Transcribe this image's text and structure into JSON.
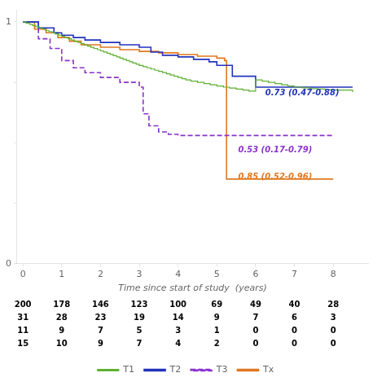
{
  "chart_data": {
    "type": "step",
    "xlabel": "Time since start of study  (years)",
    "xlim": [
      -0.15,
      8.9
    ],
    "xticks": [
      0,
      1,
      2,
      3,
      4,
      5,
      6,
      7,
      8
    ],
    "ylim": [
      0,
      1.05
    ],
    "yticks": [
      0,
      {
        "value": 0.25,
        "label": ""
      },
      {
        "value": 0.5,
        "label": ""
      },
      {
        "value": 0.75,
        "label": ""
      },
      1
    ],
    "grid": false,
    "legend": "bottom",
    "series": [
      {
        "name": "T1",
        "color": "#5db030",
        "line_style": "solid",
        "x": [
          0,
          0.08,
          0.17,
          0.25,
          0.33,
          0.42,
          0.5,
          0.58,
          0.67,
          0.75,
          0.83,
          0.92,
          1.0,
          1.08,
          1.17,
          1.25,
          1.33,
          1.42,
          1.5,
          1.58,
          1.67,
          1.75,
          1.83,
          1.92,
          2.0,
          2.08,
          2.17,
          2.25,
          2.33,
          2.42,
          2.5,
          2.58,
          2.67,
          2.75,
          2.83,
          2.92,
          3.0,
          3.1,
          3.2,
          3.3,
          3.4,
          3.5,
          3.6,
          3.7,
          3.8,
          3.9,
          4.0,
          4.1,
          4.2,
          4.33,
          4.5,
          4.67,
          4.83,
          5.0,
          5.17,
          5.33,
          5.5,
          5.67,
          5.83,
          6.0,
          6.17,
          6.33,
          6.5,
          6.67,
          6.83,
          7.0,
          7.2,
          7.4,
          7.6,
          7.8,
          8.0,
          8.5
        ],
        "values": [
          1.0,
          0.995,
          0.99,
          0.985,
          0.98,
          0.975,
          0.97,
          0.965,
          0.96,
          0.955,
          0.95,
          0.945,
          0.94,
          0.935,
          0.93,
          0.925,
          0.92,
          0.915,
          0.91,
          0.905,
          0.9,
          0.895,
          0.89,
          0.885,
          0.88,
          0.875,
          0.87,
          0.865,
          0.86,
          0.855,
          0.85,
          0.845,
          0.84,
          0.835,
          0.83,
          0.825,
          0.82,
          0.815,
          0.81,
          0.805,
          0.8,
          0.795,
          0.79,
          0.785,
          0.78,
          0.775,
          0.77,
          0.765,
          0.76,
          0.755,
          0.75,
          0.745,
          0.74,
          0.735,
          0.73,
          0.726,
          0.722,
          0.718,
          0.714,
          0.76,
          0.755,
          0.75,
          0.745,
          0.74,
          0.735,
          0.73,
          0.727,
          0.724,
          0.722,
          0.72,
          0.718,
          0.71
        ]
      },
      {
        "name": "T2",
        "color": "#2233bb",
        "line_style": "solid",
        "x": [
          0,
          0.4,
          0.8,
          1.0,
          1.3,
          1.6,
          2.0,
          2.5,
          3.0,
          3.3,
          3.6,
          4.0,
          4.4,
          4.8,
          5.0,
          5.4,
          6.0,
          7.0,
          8.0,
          8.5
        ],
        "values": [
          1.0,
          0.975,
          0.955,
          0.945,
          0.935,
          0.925,
          0.915,
          0.905,
          0.895,
          0.875,
          0.862,
          0.855,
          0.845,
          0.835,
          0.82,
          0.775,
          0.73,
          0.73,
          0.73,
          0.73
        ]
      },
      {
        "name": "T3",
        "color": "#8833cc",
        "line_style": "dashed",
        "x": [
          0,
          0.4,
          0.7,
          1.0,
          1.3,
          1.6,
          2.0,
          2.5,
          3.0,
          3.1,
          3.25,
          3.5,
          3.75,
          4.0,
          5.0,
          5.5,
          6.0,
          8.0
        ],
        "values": [
          1.0,
          0.93,
          0.89,
          0.84,
          0.81,
          0.79,
          0.77,
          0.75,
          0.73,
          0.62,
          0.57,
          0.545,
          0.535,
          0.53,
          0.53,
          0.53,
          0.53,
          0.53
        ]
      },
      {
        "name": "Tx",
        "color": "#e07820",
        "line_style": "solid",
        "x": [
          0,
          0.3,
          0.6,
          0.9,
          1.2,
          1.5,
          2.0,
          2.5,
          3.0,
          3.5,
          4.0,
          4.5,
          5.0,
          5.2,
          5.25,
          5.5,
          6.0,
          8.0
        ],
        "values": [
          1.0,
          0.97,
          0.955,
          0.935,
          0.92,
          0.905,
          0.895,
          0.885,
          0.878,
          0.872,
          0.865,
          0.858,
          0.85,
          0.84,
          0.35,
          0.35,
          0.35,
          0.35
        ]
      }
    ],
    "annotations": [
      {
        "text": "0.73 (0.47-0.88)",
        "x": 6.25,
        "y": 0.695,
        "color": "#2233bb"
      },
      {
        "text": "0.53 (0.17-0.79)",
        "x": 5.55,
        "y": 0.46,
        "color": "#8833cc"
      },
      {
        "text": "0.85 (0.52-0.96)",
        "x": 5.55,
        "y": 0.35,
        "color": "#e07820"
      }
    ],
    "risk_table": {
      "x": [
        0,
        1,
        2,
        3,
        4,
        5,
        6,
        7,
        8
      ],
      "rows": [
        [
          200,
          178,
          146,
          123,
          100,
          69,
          49,
          40,
          28
        ],
        [
          31,
          28,
          23,
          19,
          14,
          9,
          7,
          6,
          3
        ],
        [
          11,
          9,
          7,
          5,
          3,
          1,
          0,
          0,
          0
        ],
        [
          15,
          10,
          9,
          7,
          4,
          2,
          0,
          0,
          0
        ]
      ]
    }
  }
}
